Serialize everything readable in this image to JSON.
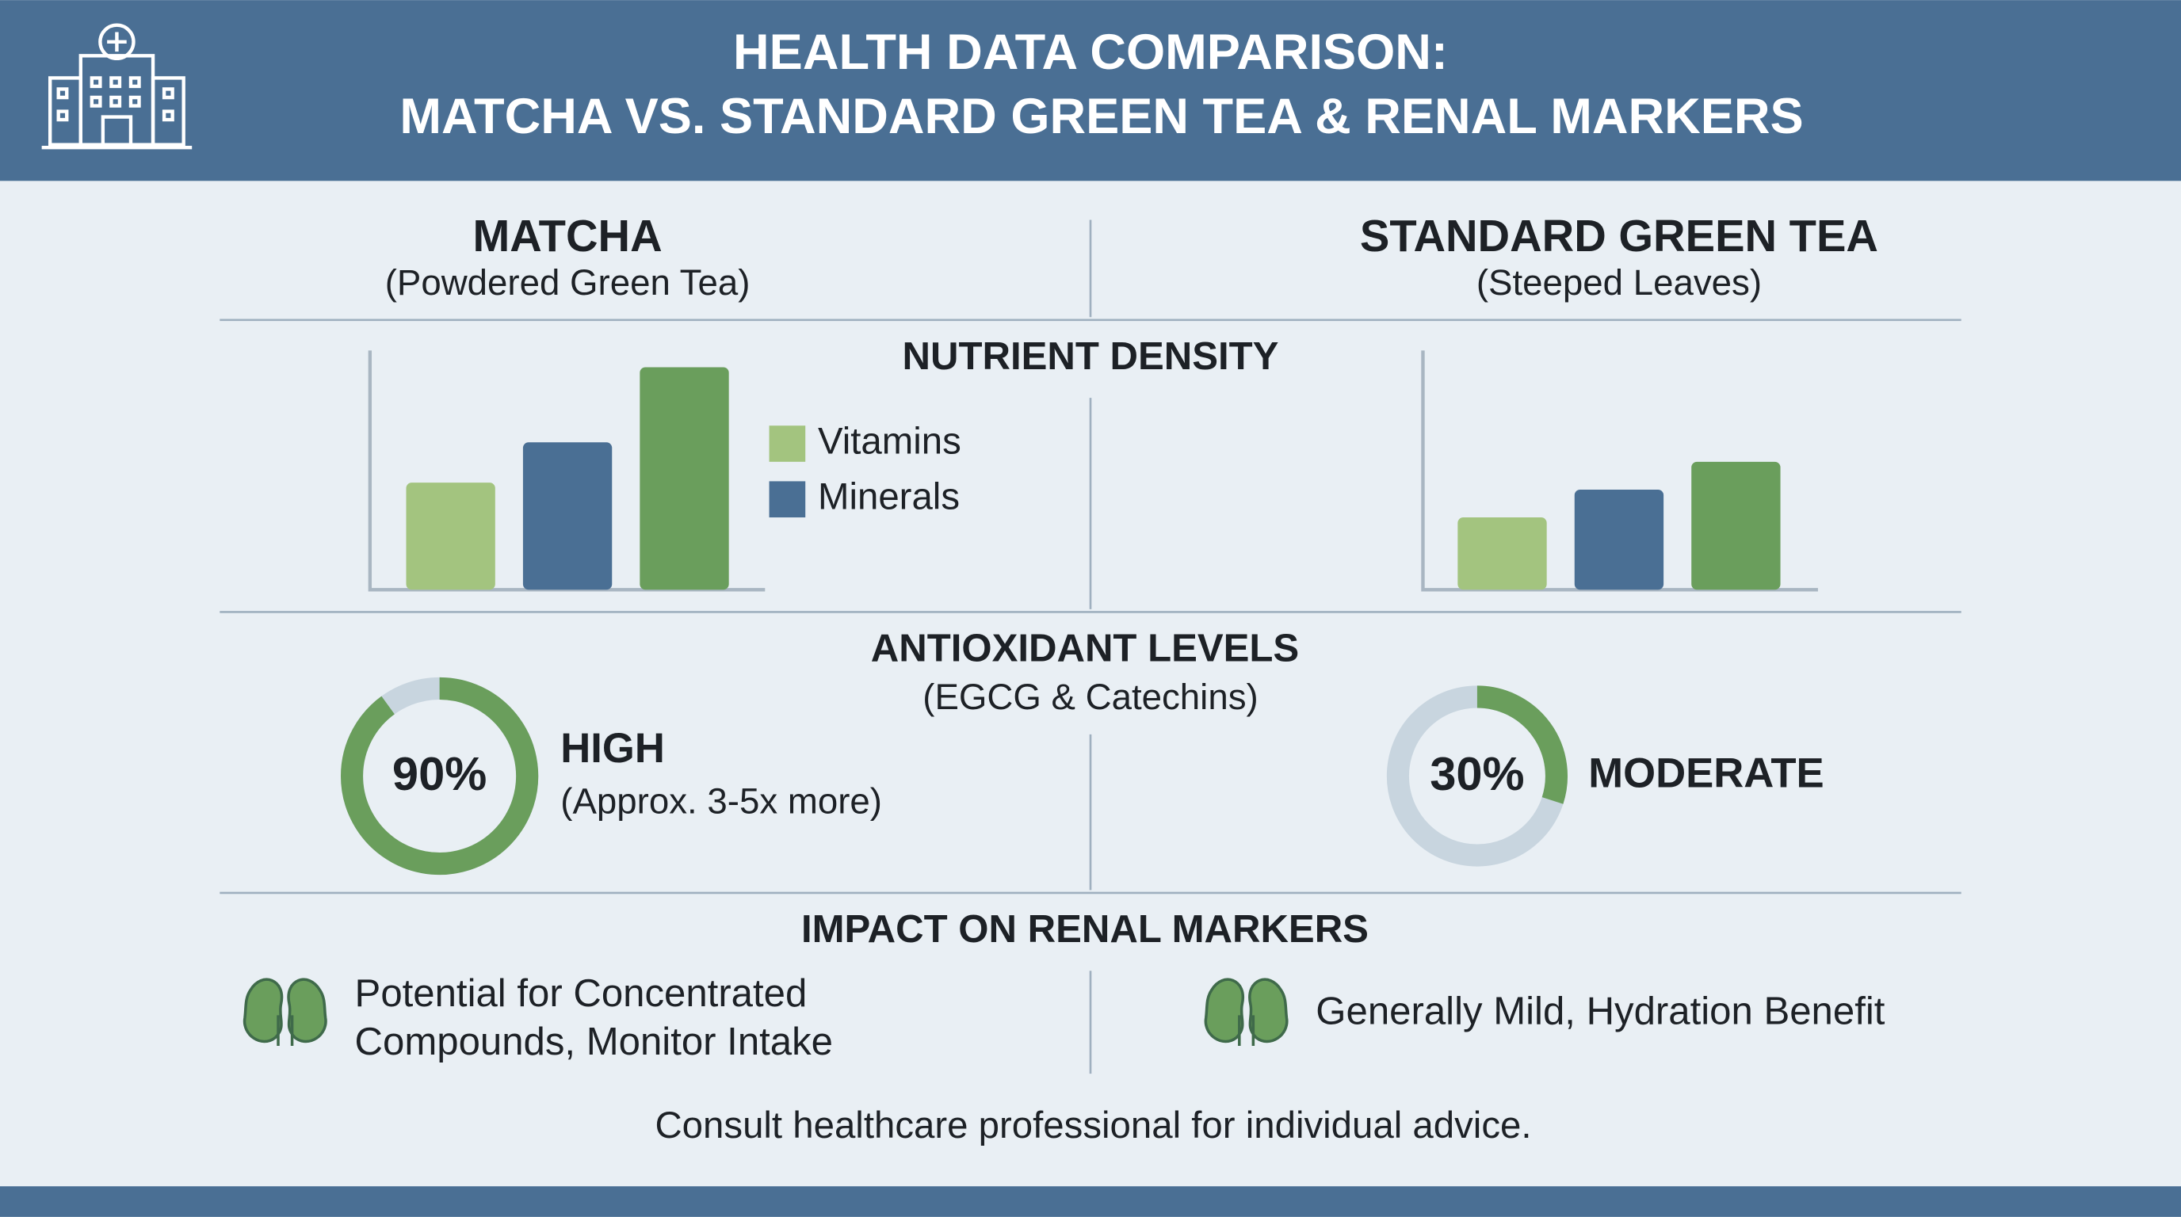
{
  "header": {
    "title_lines": [
      "HEALTH DATA COMPARISON:",
      "MATCHA VS. STANDARD GREEN TEA & RENAL MARKERS"
    ]
  },
  "columns": [
    {
      "title": "MATCHA",
      "subtitle": "(Powdered Green Tea)"
    },
    {
      "title": "STANDARD GREEN TEA",
      "subtitle": "(Steeped Leaves)"
    }
  ],
  "sections": {
    "nutrient": {
      "title": "NUTRIENT DENSITY"
    },
    "antioxidant": {
      "title": "ANTIOXIDANT LEVELS",
      "subtitle": "(EGCG & Catechins)"
    },
    "renal": {
      "title": "IMPACT ON RENAL MARKERS",
      "items": [
        {
          "lines": [
            "Potential for Concentrated",
            "Compounds, Monitor Intake"
          ]
        },
        {
          "lines": [
            "Generally Mild, Hydration Benefit"
          ]
        }
      ]
    }
  },
  "footer": "Consult healthcare professional for individual advice.",
  "chart_data": [
    {
      "type": "bar",
      "ylim": [
        0,
        170
      ],
      "series": [
        {
          "name": "Vitamins",
          "color": "#a3c47f",
          "values": [
            77
          ]
        },
        {
          "name": "Minerals",
          "color": "#4a6f94",
          "values": [
            106
          ]
        },
        {
          "color": "#6a9e5c",
          "values": [
            160
          ]
        }
      ]
    },
    {
      "type": "bar",
      "ylim": [
        0,
        170
      ],
      "series": [
        {
          "color": "#a3c47f",
          "values": [
            52
          ]
        },
        {
          "color": "#4a6f94",
          "values": [
            72
          ]
        },
        {
          "color": "#6a9e5c",
          "values": [
            92
          ]
        }
      ]
    },
    {
      "type": "donut",
      "values": [
        90
      ],
      "value_labels": [
        "90%"
      ],
      "label": "HIGH",
      "note": "(Approx. 3-5x more)",
      "color": "#6a9e5c",
      "track_color": "#c8d5df"
    },
    {
      "type": "donut",
      "values": [
        30
      ],
      "value_labels": [
        "30%"
      ],
      "label": "MODERATE",
      "color": "#6a9e5c",
      "track_color": "#c8d5df"
    }
  ]
}
